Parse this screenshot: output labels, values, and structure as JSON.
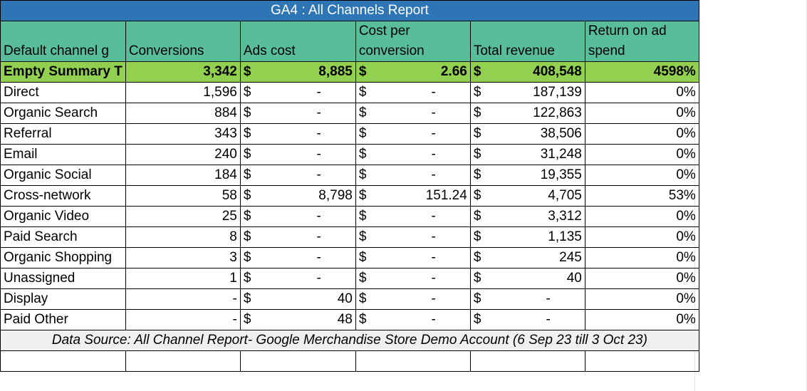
{
  "title": "GA4 : All Channels Report",
  "headers": {
    "channel": "Default channel g",
    "conversions": "Conversions",
    "ads_cost": "Ads cost",
    "cost_per_conversion": "Cost per conversion",
    "total_revenue": "Total revenue",
    "roas": "Return on ad spend"
  },
  "currency_symbol": "$",
  "summary": {
    "channel": "Empty Summary T",
    "conversions": "3,342",
    "ads_cost": "8,885",
    "cost_per_conversion": "2.66",
    "total_revenue": "408,548",
    "roas": "4598%"
  },
  "rows": [
    {
      "channel": "Direct",
      "conversions": "1,596",
      "ads_cost": "-",
      "cost_per_conversion": "-",
      "total_revenue": "187,139",
      "roas": "0%"
    },
    {
      "channel": "Organic Search",
      "conversions": "884",
      "ads_cost": "-",
      "cost_per_conversion": "-",
      "total_revenue": "122,863",
      "roas": "0%"
    },
    {
      "channel": "Referral",
      "conversions": "343",
      "ads_cost": "-",
      "cost_per_conversion": "-",
      "total_revenue": "38,506",
      "roas": "0%"
    },
    {
      "channel": "Email",
      "conversions": "240",
      "ads_cost": "-",
      "cost_per_conversion": "-",
      "total_revenue": "31,248",
      "roas": "0%"
    },
    {
      "channel": "Organic Social",
      "conversions": "184",
      "ads_cost": "-",
      "cost_per_conversion": "-",
      "total_revenue": "19,355",
      "roas": "0%"
    },
    {
      "channel": "Cross-network",
      "conversions": "58",
      "ads_cost": "8,798",
      "cost_per_conversion": "151.24",
      "total_revenue": "4,705",
      "roas": "53%"
    },
    {
      "channel": "Organic Video",
      "conversions": "25",
      "ads_cost": "-",
      "cost_per_conversion": "-",
      "total_revenue": "3,312",
      "roas": "0%"
    },
    {
      "channel": "Paid Search",
      "conversions": "8",
      "ads_cost": "-",
      "cost_per_conversion": "-",
      "total_revenue": "1,135",
      "roas": "0%"
    },
    {
      "channel": "Organic Shopping",
      "conversions": "3",
      "ads_cost": "-",
      "cost_per_conversion": "-",
      "total_revenue": "245",
      "roas": "0%"
    },
    {
      "channel": "Unassigned",
      "conversions": "1",
      "ads_cost": "-",
      "cost_per_conversion": "-",
      "total_revenue": "40",
      "roas": "0%"
    },
    {
      "channel": "Display",
      "conversions": "-",
      "ads_cost": "40",
      "cost_per_conversion": "-",
      "total_revenue": "-",
      "roas": "0%"
    },
    {
      "channel": "Paid Other",
      "conversions": "-",
      "ads_cost": "48",
      "cost_per_conversion": "-",
      "total_revenue": "-",
      "roas": "0%"
    }
  ],
  "footer": "Data Source: All Channel Report- Google Merchandise Store Demo Account (6 Sep 23 till 3 Oct 23)",
  "colors": {
    "title_bg": "#2e75b6",
    "header_bg": "#58bd9b",
    "summary_bg": "#92d050",
    "footer_bg": "#f0f0f0"
  }
}
